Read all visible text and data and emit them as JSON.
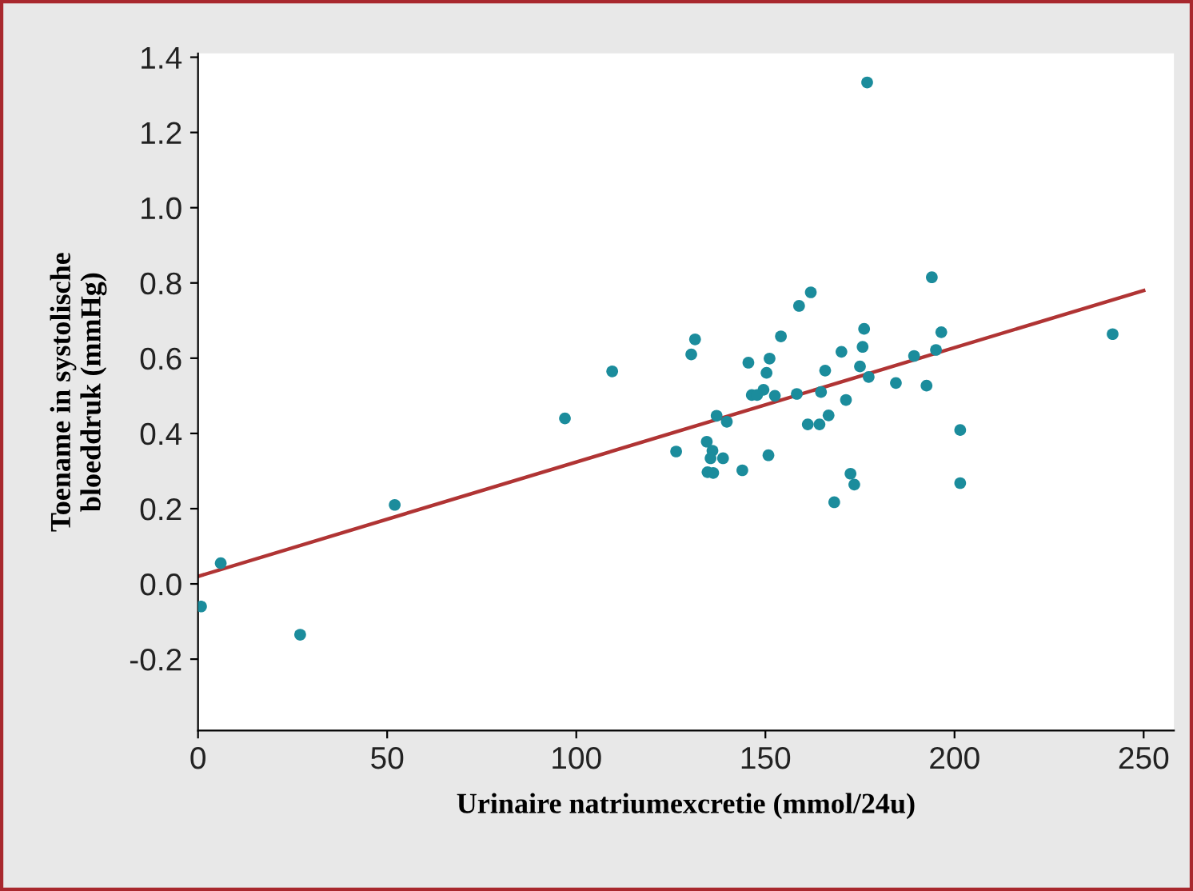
{
  "chart_data": {
    "type": "scatter",
    "xlabel": "Urinaire natriumexcretie (mmol/24u)",
    "ylabel": "Toename in systolische\nbloeddruk (mmHg)",
    "xlim": [
      0,
      258
    ],
    "ylim": [
      -0.39,
      1.41
    ],
    "xticks": [
      0,
      50,
      100,
      150,
      200,
      250
    ],
    "yticks": [
      -0.2,
      {
        "value": 0,
        "label": "0.0"
      },
      0.2,
      0.4,
      0.6,
      0.8,
      {
        "value": 1,
        "label": "1.0"
      },
      1.2,
      1.4
    ],
    "grid": false,
    "legend": false,
    "series": [
      {
        "marker": "circle",
        "color": "#1b8c9c",
        "x": [
          0.8,
          6,
          27,
          52,
          97,
          109.5,
          176.9,
          194,
          162,
          158.9,
          131.4,
          130.4,
          154.1,
          176.1,
          196.5,
          241.8,
          175.7,
          195.1,
          189.3,
          145.5,
          151.1,
          170.1,
          150.3,
          175,
          165.8,
          177.3,
          184.5,
          192.6,
          149.5,
          146.4,
          147.8,
          152.5,
          158.3,
          164.7,
          171.3,
          137.1,
          139.8,
          161.2,
          164.3,
          166.7,
          201.5,
          126.4,
          134.5,
          136,
          135.5,
          138.8,
          150.8,
          143.9,
          134.7,
          136.2,
          172.5,
          173.5,
          201.5,
          168.2
        ],
        "values": [
          -0.06,
          0.055,
          -0.135,
          0.21,
          0.44,
          0.565,
          1.333,
          0.815,
          0.775,
          0.739,
          0.65,
          0.61,
          0.658,
          0.678,
          0.669,
          0.664,
          0.63,
          0.622,
          0.606,
          0.588,
          0.599,
          0.617,
          0.561,
          0.578,
          0.567,
          0.55,
          0.534,
          0.527,
          0.516,
          0.502,
          0.502,
          0.5,
          0.505,
          0.51,
          0.489,
          0.447,
          0.431,
          0.424,
          0.424,
          0.448,
          0.409,
          0.352,
          0.378,
          0.354,
          0.334,
          0.334,
          0.342,
          0.302,
          0.297,
          0.295,
          0.293,
          0.264,
          0.268,
          0.217
        ]
      },
      {
        "type": "line",
        "color": "#b03434",
        "x": [
          0,
          250
        ],
        "values": [
          0.02,
          0.78
        ],
        "marker": "none"
      }
    ]
  }
}
